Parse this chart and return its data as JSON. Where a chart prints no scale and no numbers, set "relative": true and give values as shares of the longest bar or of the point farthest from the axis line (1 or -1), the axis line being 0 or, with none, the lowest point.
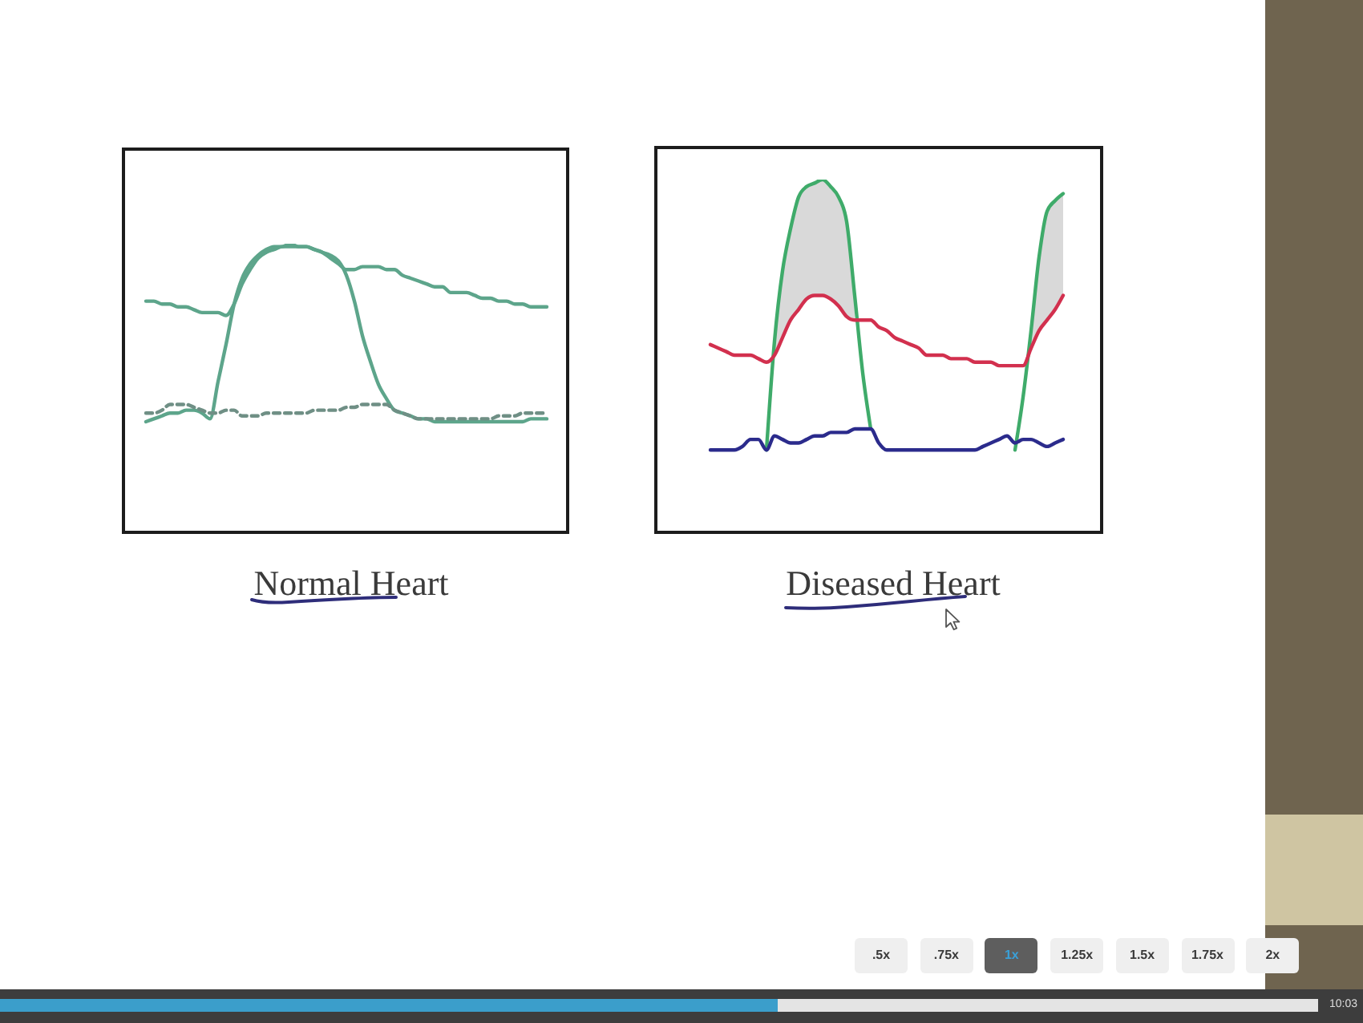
{
  "chart_data": [
    {
      "type": "line",
      "title": "Normal Heart",
      "relative": true,
      "categories": [
        null,
        null,
        null,
        null,
        null,
        null,
        null,
        null,
        null,
        null,
        null,
        null,
        null,
        null,
        null,
        null,
        null,
        null,
        null,
        null,
        null,
        null,
        null,
        null,
        null,
        null,
        null,
        null,
        null,
        null,
        null,
        null,
        null,
        null,
        null,
        null,
        null,
        null,
        null,
        null,
        null,
        null,
        null,
        null,
        null,
        null,
        null,
        null,
        null,
        null,
        null
      ],
      "series": [
        {
          "color": "#5da58b",
          "values": [
            0.8,
            0.8,
            0.79,
            0.79,
            0.78,
            0.78,
            0.77,
            0.76,
            0.76,
            0.76,
            0.75,
            0.79,
            0.86,
            0.91,
            0.95,
            0.97,
            0.98,
            0.99,
            0.99,
            0.99,
            0.99,
            0.98,
            0.97,
            0.95,
            0.93,
            0.91,
            0.91,
            0.92,
            0.92,
            0.92,
            0.91,
            0.91,
            0.89,
            0.88,
            0.87,
            0.86,
            0.85,
            0.85,
            0.83,
            0.83,
            0.83,
            0.82,
            0.81,
            0.81,
            0.8,
            0.8,
            0.79,
            0.79,
            0.78,
            0.78,
            0.78
          ]
        },
        {
          "color": "#5da58b",
          "values": [
            0.38,
            0.39,
            0.4,
            0.41,
            0.41,
            0.42,
            0.42,
            0.41,
            0.39,
            0.52,
            0.65,
            0.79,
            0.88,
            0.93,
            0.96,
            0.98,
            0.99,
            0.99,
            1.0,
            0.99,
            0.99,
            0.98,
            0.97,
            0.96,
            0.94,
            0.89,
            0.8,
            0.68,
            0.59,
            0.51,
            0.46,
            0.42,
            0.41,
            0.4,
            0.39,
            0.39,
            0.38,
            0.38,
            0.38,
            0.38,
            0.38,
            0.38,
            0.38,
            0.38,
            0.38,
            0.38,
            0.38,
            0.38,
            0.39,
            0.39,
            0.39
          ]
        },
        {
          "color": "#6f8f85",
          "line_style": "dashed",
          "values": [
            0.41,
            0.41,
            0.42,
            0.44,
            0.44,
            0.44,
            0.43,
            0.42,
            0.41,
            0.41,
            0.42,
            0.42,
            0.4,
            0.4,
            0.4,
            0.41,
            0.41,
            0.41,
            0.41,
            0.41,
            0.41,
            0.42,
            0.42,
            0.42,
            0.42,
            0.43,
            0.43,
            0.44,
            0.44,
            0.44,
            0.44,
            0.42,
            0.41,
            0.4,
            0.39,
            0.39,
            0.39,
            0.39,
            0.39,
            0.39,
            0.39,
            0.39,
            0.39,
            0.39,
            0.4,
            0.4,
            0.4,
            0.41,
            0.41,
            0.41,
            0.41
          ]
        }
      ]
    },
    {
      "type": "line",
      "title": "Diseased Heart",
      "relative": true,
      "categories": [
        null,
        null,
        null,
        null,
        null,
        null,
        null,
        null,
        null,
        null,
        null,
        null,
        null,
        null,
        null,
        null,
        null,
        null,
        null,
        null,
        null,
        null,
        null,
        null,
        null,
        null,
        null,
        null,
        null,
        null,
        null,
        null,
        null,
        null,
        null,
        null,
        null,
        null,
        null,
        null,
        null,
        null,
        null,
        null,
        null
      ],
      "series": [
        {
          "color": "#3fab6a",
          "values": [
            null,
            null,
            null,
            null,
            null,
            null,
            null,
            0.23,
            0.54,
            0.74,
            0.86,
            0.95,
            0.98,
            0.99,
            1.0,
            0.98,
            0.95,
            0.88,
            0.67,
            0.45,
            0.29,
            null,
            null,
            null,
            null,
            null,
            null,
            null,
            null,
            null,
            null,
            null,
            null,
            null,
            null,
            null,
            null,
            null,
            0.23,
            0.38,
            0.57,
            0.78,
            0.91,
            0.94,
            0.96
          ],
          "lower": [
            null,
            null,
            null,
            null,
            null,
            null,
            null,
            null,
            0.5,
            0.55,
            0.6,
            0.63,
            0.66,
            0.67,
            0.67,
            0.66,
            0.64,
            0.61,
            0.6,
            null,
            null,
            null,
            null,
            null,
            null,
            null,
            null,
            null,
            null,
            null,
            null,
            null,
            null,
            null,
            null,
            null,
            null,
            null,
            null,
            null,
            0.52,
            0.57,
            0.6,
            0.63,
            0.67
          ],
          "upper": [
            null,
            null,
            null,
            null,
            null,
            null,
            null,
            null,
            0.54,
            0.74,
            0.86,
            0.95,
            0.98,
            0.99,
            1.0,
            0.98,
            0.95,
            0.88,
            0.67,
            null,
            null,
            null,
            null,
            null,
            null,
            null,
            null,
            null,
            null,
            null,
            null,
            null,
            null,
            null,
            null,
            null,
            null,
            null,
            null,
            null,
            0.57,
            0.78,
            0.91,
            0.94,
            0.96
          ]
        },
        {
          "color": "#d2304e",
          "values": [
            0.53,
            0.52,
            0.51,
            0.5,
            0.5,
            0.5,
            0.49,
            0.48,
            0.5,
            0.55,
            0.6,
            0.63,
            0.66,
            0.67,
            0.67,
            0.66,
            0.64,
            0.61,
            0.6,
            0.6,
            0.6,
            0.58,
            0.57,
            0.55,
            0.54,
            0.53,
            0.52,
            0.5,
            0.5,
            0.5,
            0.49,
            0.49,
            0.49,
            0.48,
            0.48,
            0.48,
            0.47,
            0.47,
            0.47,
            0.47,
            0.52,
            0.57,
            0.6,
            0.63,
            0.67
          ]
        },
        {
          "color": "#2b2b8c",
          "values": [
            0.23,
            0.23,
            0.23,
            0.23,
            0.24,
            0.26,
            0.26,
            0.23,
            0.27,
            0.26,
            0.25,
            0.25,
            0.26,
            0.27,
            0.27,
            0.28,
            0.28,
            0.28,
            0.29,
            0.29,
            0.29,
            0.25,
            0.23,
            0.23,
            0.23,
            0.23,
            0.23,
            0.23,
            0.23,
            0.23,
            0.23,
            0.23,
            0.23,
            0.23,
            0.24,
            0.25,
            0.26,
            0.27,
            0.25,
            0.26,
            0.26,
            0.25,
            0.24,
            0.25,
            0.26
          ]
        }
      ],
      "annotations": [
        ".5x",
        ".75x",
        "1x",
        "1.25x",
        "1.5x",
        "1.75x",
        "2x",
        "10:03"
      ]
    }
  ]
}
